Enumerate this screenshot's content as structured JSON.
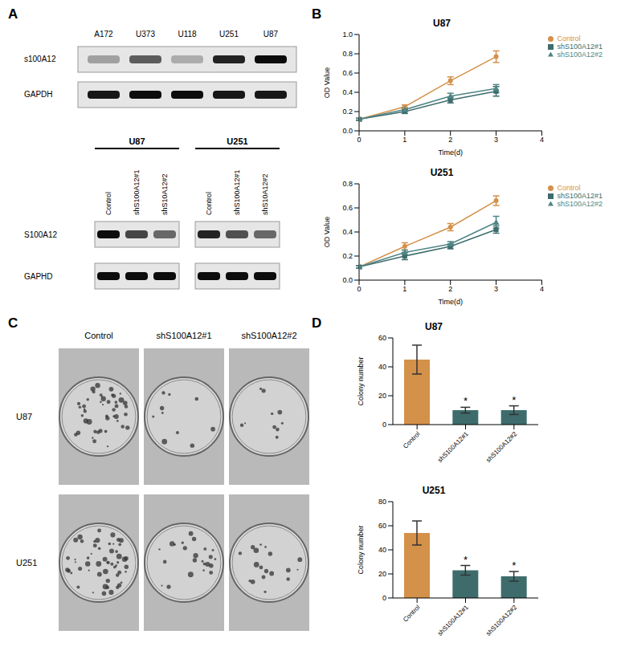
{
  "panel_labels": [
    "A",
    "B",
    "C",
    "D"
  ],
  "blots": [
    {
      "lanes": [
        "A172",
        "U373",
        "U118",
        "U251",
        "U87"
      ],
      "rows": [
        {
          "label": "s100A12",
          "intensity": [
            0.3,
            0.6,
            0.25,
            0.85,
            0.95
          ]
        },
        {
          "label": "GAPDH",
          "intensity": [
            0.9,
            0.95,
            0.95,
            0.9,
            0.9
          ]
        }
      ]
    },
    {
      "groups": [
        {
          "name": "U87",
          "lanes": [
            "Control",
            "shS100A12#1",
            "shS10A12#2"
          ]
        },
        {
          "name": "U251",
          "lanes": [
            "Control",
            "shS100A12#1",
            "shS10A12#2"
          ]
        }
      ],
      "rows": [
        {
          "label": "S100A12",
          "intensity": [
            0.95,
            0.7,
            0.55,
            0.85,
            0.65,
            0.55
          ]
        },
        {
          "label": "GAPHD",
          "intensity": [
            0.95,
            0.95,
            0.95,
            0.95,
            0.95,
            0.95
          ]
        }
      ]
    }
  ],
  "colony_images": {
    "columns": [
      "Control",
      "shS100A12#1",
      "shS100A12#2"
    ],
    "rows": [
      "U87",
      "U251"
    ]
  },
  "chart_data": [
    {
      "type": "line",
      "title": "U87",
      "x_label": "Time(d)",
      "y_label": "OD Value",
      "x": [
        0,
        1,
        2,
        3
      ],
      "xlim": [
        0,
        4
      ],
      "xticks": [
        0,
        1,
        2,
        3,
        4
      ],
      "ylim": [
        0,
        1
      ],
      "yticks": [
        {
          "value": 0,
          "label": "0.0"
        },
        0.2,
        0.4,
        0.6,
        0.8,
        {
          "value": 1,
          "label": "1.0"
        }
      ],
      "legend": "right",
      "series": [
        {
          "name": "Control",
          "color": "#d4914a",
          "marker": "circle",
          "values": [
            0.12,
            0.25,
            0.52,
            0.77
          ],
          "errors": [
            0.01,
            0.02,
            0.04,
            0.06
          ]
        },
        {
          "name": "shS100A12#1",
          "color": "#3e6c6c",
          "marker": "square",
          "values": [
            0.12,
            0.2,
            0.32,
            0.41
          ],
          "errors": [
            0.01,
            0.02,
            0.03,
            0.05
          ]
        },
        {
          "name": "shS100A12#2",
          "color": "#4f8585",
          "marker": "triangle",
          "values": [
            0.12,
            0.22,
            0.36,
            0.44
          ],
          "errors": [
            0.01,
            0.02,
            0.03,
            0.04
          ]
        }
      ]
    },
    {
      "type": "line",
      "title": "U251",
      "x_label": "Time(d)",
      "y_label": "OD Value",
      "x": [
        0,
        1,
        2,
        3
      ],
      "xlim": [
        0,
        4
      ],
      "xticks": [
        0,
        1,
        2,
        3,
        4
      ],
      "ylim": [
        0,
        0.8
      ],
      "yticks": [
        {
          "value": 0,
          "label": "0.0"
        },
        0.2,
        0.4,
        0.6,
        0.8
      ],
      "legend": "right",
      "series": [
        {
          "name": "Control",
          "color": "#d4914a",
          "marker": "circle",
          "values": [
            0.11,
            0.28,
            0.44,
            0.66
          ],
          "errors": [
            0.01,
            0.03,
            0.03,
            0.04
          ]
        },
        {
          "name": "shS100A12#1",
          "color": "#3e6c6c",
          "marker": "square",
          "values": [
            0.11,
            0.2,
            0.28,
            0.42
          ],
          "errors": [
            0.01,
            0.03,
            0.02,
            0.03
          ]
        },
        {
          "name": "shS100A12#2",
          "color": "#4f8585",
          "marker": "triangle",
          "values": [
            0.11,
            0.23,
            0.3,
            0.48
          ],
          "errors": [
            0.01,
            0.02,
            0.02,
            0.05
          ]
        }
      ]
    },
    {
      "type": "bar",
      "title": "U87",
      "y_label": "Colony number",
      "categories": [
        "Control",
        "shS100A12#1",
        "shS100A12#2"
      ],
      "values": [
        45,
        10,
        10
      ],
      "errors": [
        10,
        2,
        3
      ],
      "colors": [
        "#d4914a",
        "#3e6c6c",
        "#3e6c6c"
      ],
      "significance": [
        null,
        "*",
        "*"
      ],
      "ylim": [
        0,
        60
      ],
      "yticks": [
        0,
        20,
        40,
        60
      ]
    },
    {
      "type": "bar",
      "title": "U251",
      "y_label": "Colony number",
      "categories": [
        "Control",
        "shS100A12#1",
        "shS100A12#2"
      ],
      "values": [
        54,
        23,
        18
      ],
      "errors": [
        10,
        4,
        4
      ],
      "colors": [
        "#d4914a",
        "#3e6c6c",
        "#3e6c6c"
      ],
      "significance": [
        null,
        "*",
        "*"
      ],
      "ylim": [
        0,
        80
      ],
      "yticks": [
        0,
        20,
        40,
        60,
        80
      ]
    }
  ]
}
